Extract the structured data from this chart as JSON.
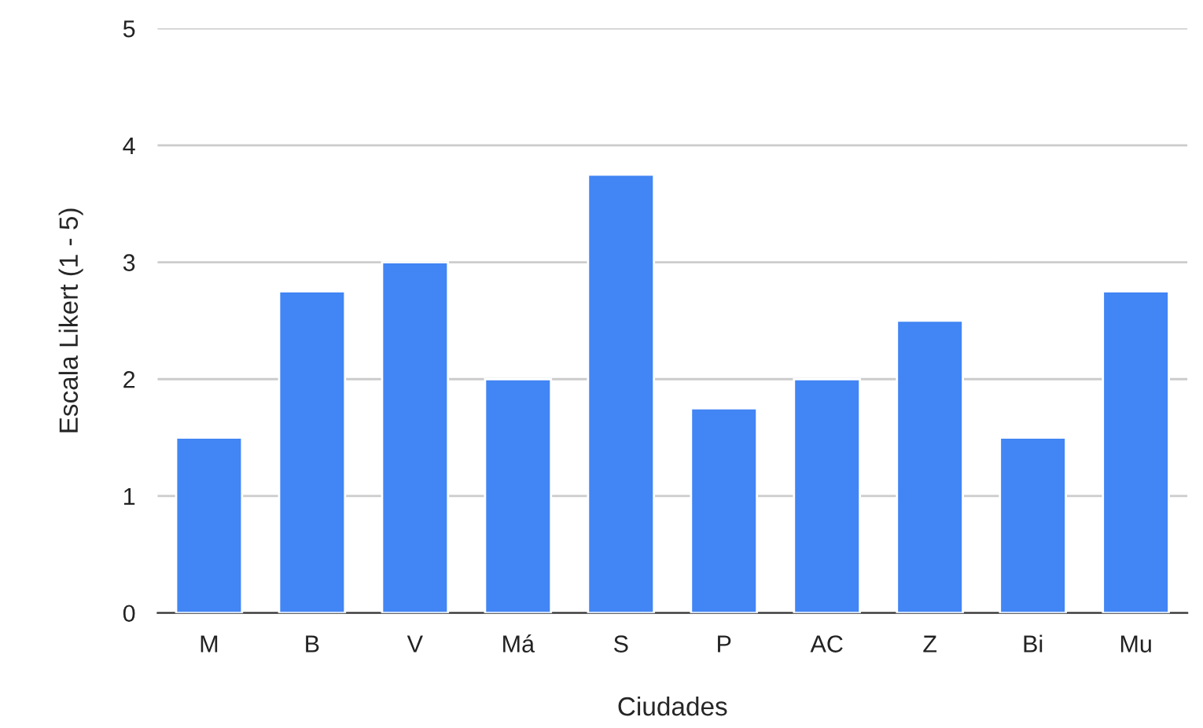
{
  "chart_data": {
    "type": "bar",
    "xlabel": "Ciudades",
    "ylabel": "Escala Likert (1 - 5)",
    "categories": [
      "M",
      "B",
      "V",
      "Má",
      "S",
      "P",
      "AC",
      "Z",
      "Bi",
      "Mu"
    ],
    "values": [
      1.5,
      2.75,
      3,
      2,
      3.75,
      1.75,
      2,
      2.5,
      1.5,
      2.75
    ],
    "color": "#4285f4",
    "ylim": [
      0,
      5
    ],
    "yticks": [
      0,
      1,
      2,
      3,
      4,
      5
    ],
    "grid": "y",
    "legend": false
  }
}
